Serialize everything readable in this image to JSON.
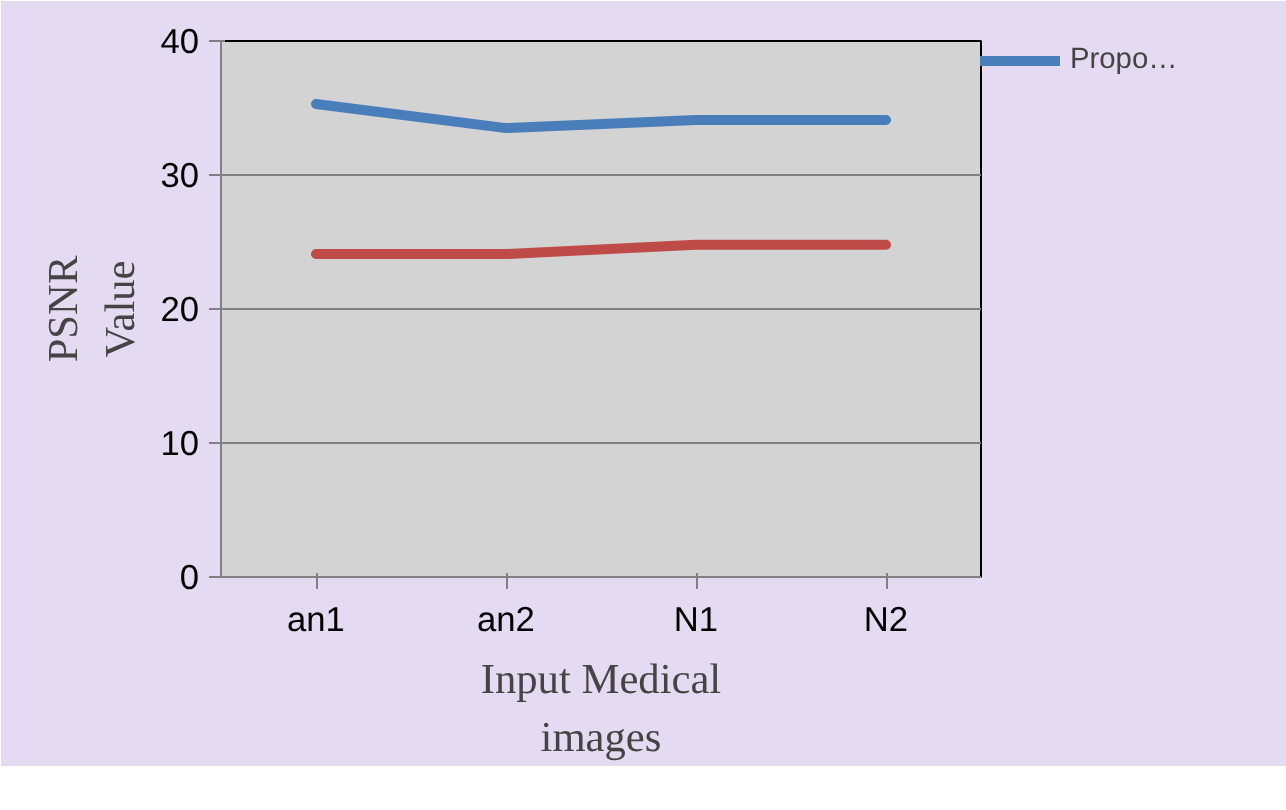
{
  "chart_data": {
    "type": "line",
    "xlabel": "Input Medical images",
    "ylabel": "PSNR Value",
    "categories": [
      "an1",
      "an2",
      "N1",
      "N2"
    ],
    "series": [
      {
        "name": "Propo…",
        "color": "#4a7ebb",
        "values": [
          35.3,
          33.5,
          34.1,
          34.1
        ]
      },
      {
        "color": "#be4b48",
        "values": [
          24.1,
          24.1,
          24.8,
          24.8
        ]
      }
    ],
    "ylim": [
      0,
      40
    ],
    "yticks": [
      0,
      10,
      20,
      30,
      40
    ],
    "grid": "y",
    "legend": "right",
    "marker": "none",
    "line_style": "solid"
  }
}
